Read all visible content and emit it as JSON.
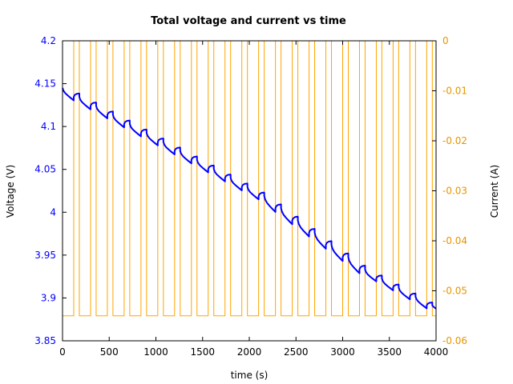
{
  "chart_data": {
    "type": "line",
    "title": "Total voltage and current vs time",
    "xlabel": "time (s)",
    "ylabel_left": "Voltage (V)",
    "ylabel_right": "Current (A)",
    "xlim": [
      0,
      4000
    ],
    "ylim_left": [
      3.85,
      4.2
    ],
    "ylim_right": [
      -0.06,
      0
    ],
    "x_ticks": [
      0,
      500,
      1000,
      1500,
      2000,
      2500,
      3000,
      3500,
      4000
    ],
    "x_tick_labels": [
      "0",
      "500",
      "1000",
      "1500",
      "2000",
      "2500",
      "3000",
      "3500",
      "4000"
    ],
    "y_left_ticks": [
      3.85,
      3.9,
      3.95,
      4.0,
      4.05,
      4.1,
      4.15,
      4.2
    ],
    "y_left_tick_labels": [
      "3.85",
      "3.9",
      "3.95",
      "4",
      "4.05",
      "4.1",
      "4.15",
      "4.2"
    ],
    "y_right_ticks": [
      -0.06,
      -0.05,
      -0.04,
      -0.03,
      -0.02,
      -0.01,
      0
    ],
    "y_right_tick_labels": [
      "-0.06",
      "-0.05",
      "-0.04",
      "-0.03",
      "-0.02",
      "-0.01",
      "0"
    ],
    "grid": false,
    "colors": {
      "voltage": "#0000ff",
      "current": "#ffa500",
      "left_axis_text": "#0000ff",
      "right_axis_text": "#e69500"
    },
    "series": [
      {
        "axis": "right",
        "color": "#ffa500",
        "x": [
          0,
          120,
          120,
          180,
          180,
          300,
          300,
          360,
          360,
          480,
          480,
          540,
          540,
          660,
          660,
          720,
          720,
          840,
          840,
          900,
          900,
          1020,
          1020,
          1080,
          1080,
          1200,
          1200,
          1260,
          1260,
          1380,
          1380,
          1440,
          1440,
          1560,
          1560,
          1620,
          1620,
          1740,
          1740,
          1800,
          1800,
          1920,
          1920,
          1980,
          1980,
          2100,
          2100,
          2160,
          2160,
          2280,
          2280,
          2340,
          2340,
          2460,
          2460,
          2520,
          2520,
          2640,
          2640,
          2700,
          2700,
          2820,
          2820,
          2880,
          2880,
          3000,
          3000,
          3060,
          3060,
          3180,
          3180,
          3240,
          3240,
          3360,
          3360,
          3420,
          3420,
          3540,
          3540,
          3600,
          3600,
          3720,
          3720,
          3780,
          3780,
          3900,
          3900,
          3960,
          3960,
          4000
        ],
        "values": [
          -0.055,
          -0.055,
          0,
          0,
          -0.055,
          -0.055,
          0,
          0,
          -0.055,
          -0.055,
          0,
          0,
          -0.055,
          -0.055,
          0,
          0,
          -0.055,
          -0.055,
          0,
          0,
          -0.055,
          -0.055,
          0,
          0,
          -0.055,
          -0.055,
          0,
          0,
          -0.055,
          -0.055,
          0,
          0,
          -0.055,
          -0.055,
          0,
          0,
          -0.055,
          -0.055,
          0,
          0,
          -0.055,
          -0.055,
          0,
          0,
          -0.055,
          -0.055,
          0,
          0,
          -0.055,
          -0.055,
          0,
          0,
          -0.055,
          -0.055,
          0,
          0,
          -0.055,
          -0.055,
          0,
          0,
          -0.055,
          -0.055,
          0,
          0,
          -0.055,
          -0.055,
          0,
          0,
          -0.055,
          -0.055,
          0,
          0,
          -0.055,
          -0.055,
          0,
          0,
          -0.055,
          -0.055,
          0,
          0,
          -0.055,
          -0.055,
          0,
          0,
          -0.055,
          -0.055,
          0,
          0,
          -0.055,
          -0.055
        ]
      },
      {
        "axis": "left",
        "color": "#0000ff",
        "x": [
          0,
          10,
          30,
          60,
          90,
          120,
          120,
          130,
          150,
          180,
          180,
          190,
          210,
          240,
          270,
          300,
          300,
          310,
          330,
          360,
          360,
          370,
          390,
          420,
          450,
          480,
          480,
          490,
          510,
          540,
          540,
          550,
          570,
          600,
          630,
          660,
          660,
          670,
          690,
          720,
          720,
          730,
          750,
          780,
          810,
          840,
          840,
          850,
          870,
          900,
          900,
          910,
          930,
          960,
          990,
          1020,
          1020,
          1030,
          1050,
          1080,
          1080,
          1090,
          1110,
          1140,
          1170,
          1200,
          1200,
          1210,
          1230,
          1260,
          1260,
          1270,
          1290,
          1320,
          1350,
          1380,
          1380,
          1390,
          1410,
          1440,
          1440,
          1450,
          1470,
          1500,
          1530,
          1560,
          1560,
          1570,
          1590,
          1620,
          1620,
          1630,
          1650,
          1680,
          1710,
          1740,
          1740,
          1750,
          1770,
          1800,
          1800,
          1810,
          1830,
          1860,
          1890,
          1920,
          1920,
          1930,
          1950,
          1980,
          1980,
          1990,
          2010,
          2040,
          2070,
          2100,
          2100,
          2110,
          2130,
          2160,
          2160,
          2170,
          2190,
          2220,
          2250,
          2280,
          2280,
          2290,
          2310,
          2340,
          2340,
          2350,
          2370,
          2400,
          2430,
          2460,
          2460,
          2470,
          2490,
          2520,
          2520,
          2530,
          2550,
          2580,
          2610,
          2640,
          2640,
          2650,
          2670,
          2700,
          2700,
          2710,
          2730,
          2760,
          2790,
          2820,
          2820,
          2830,
          2850,
          2880,
          2880,
          2890,
          2910,
          2940,
          2970,
          3000,
          3000,
          3010,
          3030,
          3060,
          3060,
          3070,
          3090,
          3120,
          3150,
          3180,
          3180,
          3190,
          3210,
          3240,
          3240,
          3250,
          3270,
          3300,
          3330,
          3360,
          3360,
          3370,
          3390,
          3420,
          3420,
          3430,
          3450,
          3480,
          3510,
          3540,
          3540,
          3550,
          3570,
          3600,
          3600,
          3610,
          3630,
          3660,
          3690,
          3720,
          3720,
          3730,
          3750,
          3780,
          3780,
          3790,
          3810,
          3840,
          3870,
          3900,
          3900,
          3910,
          3930,
          3960,
          3960,
          3975,
          4000
        ],
        "values": [
          4.145,
          4.1418,
          4.1388,
          4.1358,
          4.1331,
          4.1305,
          4.1345,
          4.1367,
          4.1381,
          4.1385,
          4.1345,
          4.1313,
          4.1283,
          4.1253,
          4.1226,
          4.12,
          4.124,
          4.1262,
          4.1276,
          4.128,
          4.124,
          4.1208,
          4.1178,
          4.1148,
          4.1121,
          4.1095,
          4.1135,
          4.1157,
          4.1171,
          4.1175,
          4.1135,
          4.1103,
          4.1073,
          4.1043,
          4.1016,
          4.099,
          4.103,
          4.1052,
          4.1066,
          4.107,
          4.103,
          4.0998,
          4.0968,
          4.0938,
          4.0911,
          4.0885,
          4.0925,
          4.0947,
          4.0961,
          4.0965,
          4.0925,
          4.0893,
          4.0863,
          4.0833,
          4.0806,
          4.078,
          4.082,
          4.0842,
          4.0856,
          4.086,
          4.082,
          4.0788,
          4.0758,
          4.0728,
          4.0701,
          4.0675,
          4.0715,
          4.0737,
          4.0751,
          4.0755,
          4.0715,
          4.0683,
          4.0653,
          4.0623,
          4.0596,
          4.057,
          4.061,
          4.0632,
          4.0646,
          4.065,
          4.061,
          4.0578,
          4.0548,
          4.0518,
          4.0491,
          4.0465,
          4.0505,
          4.0527,
          4.0541,
          4.0545,
          4.0505,
          4.0473,
          4.0443,
          4.0413,
          4.0386,
          4.036,
          4.04,
          4.0422,
          4.0436,
          4.044,
          4.04,
          4.0368,
          4.0338,
          4.0308,
          4.0281,
          4.0255,
          4.0295,
          4.0317,
          4.0331,
          4.0335,
          4.0295,
          4.0263,
          4.0233,
          4.0203,
          4.0176,
          4.015,
          4.019,
          4.0212,
          4.0226,
          4.023,
          4.019,
          4.0149,
          4.0109,
          4.007,
          4.0036,
          4.0003,
          4.0048,
          4.0072,
          4.0087,
          4.0092,
          4.0047,
          4.0006,
          3.9966,
          3.9927,
          3.9893,
          3.986,
          3.9905,
          3.9929,
          3.9944,
          3.9949,
          3.9904,
          3.9863,
          3.9823,
          3.9784,
          3.975,
          3.9717,
          3.9762,
          3.9786,
          3.9801,
          3.9806,
          3.9761,
          3.972,
          3.968,
          3.9641,
          3.9607,
          3.9574,
          3.9619,
          3.9643,
          3.9658,
          3.9663,
          3.9618,
          3.9577,
          3.9537,
          3.9498,
          3.9464,
          3.9431,
          3.9476,
          3.95,
          3.9515,
          3.952,
          3.9475,
          3.9434,
          3.9394,
          3.9355,
          3.9321,
          3.9288,
          3.9333,
          3.9357,
          3.9372,
          3.9377,
          3.9332,
          3.9301,
          3.9272,
          3.9243,
          3.9218,
          3.9193,
          3.9228,
          3.9247,
          3.9258,
          3.9262,
          3.9227,
          3.9196,
          3.9167,
          3.9138,
          3.9113,
          3.9088,
          3.9123,
          3.9142,
          3.9153,
          3.9157,
          3.9122,
          3.9091,
          3.9062,
          3.9033,
          3.9008,
          3.8983,
          3.9018,
          3.9037,
          3.9048,
          3.9052,
          3.9017,
          3.8986,
          3.8957,
          3.8928,
          3.8903,
          3.8878,
          3.8913,
          3.8932,
          3.8943,
          3.8947,
          3.8912,
          3.8895,
          3.8875
        ]
      }
    ]
  }
}
